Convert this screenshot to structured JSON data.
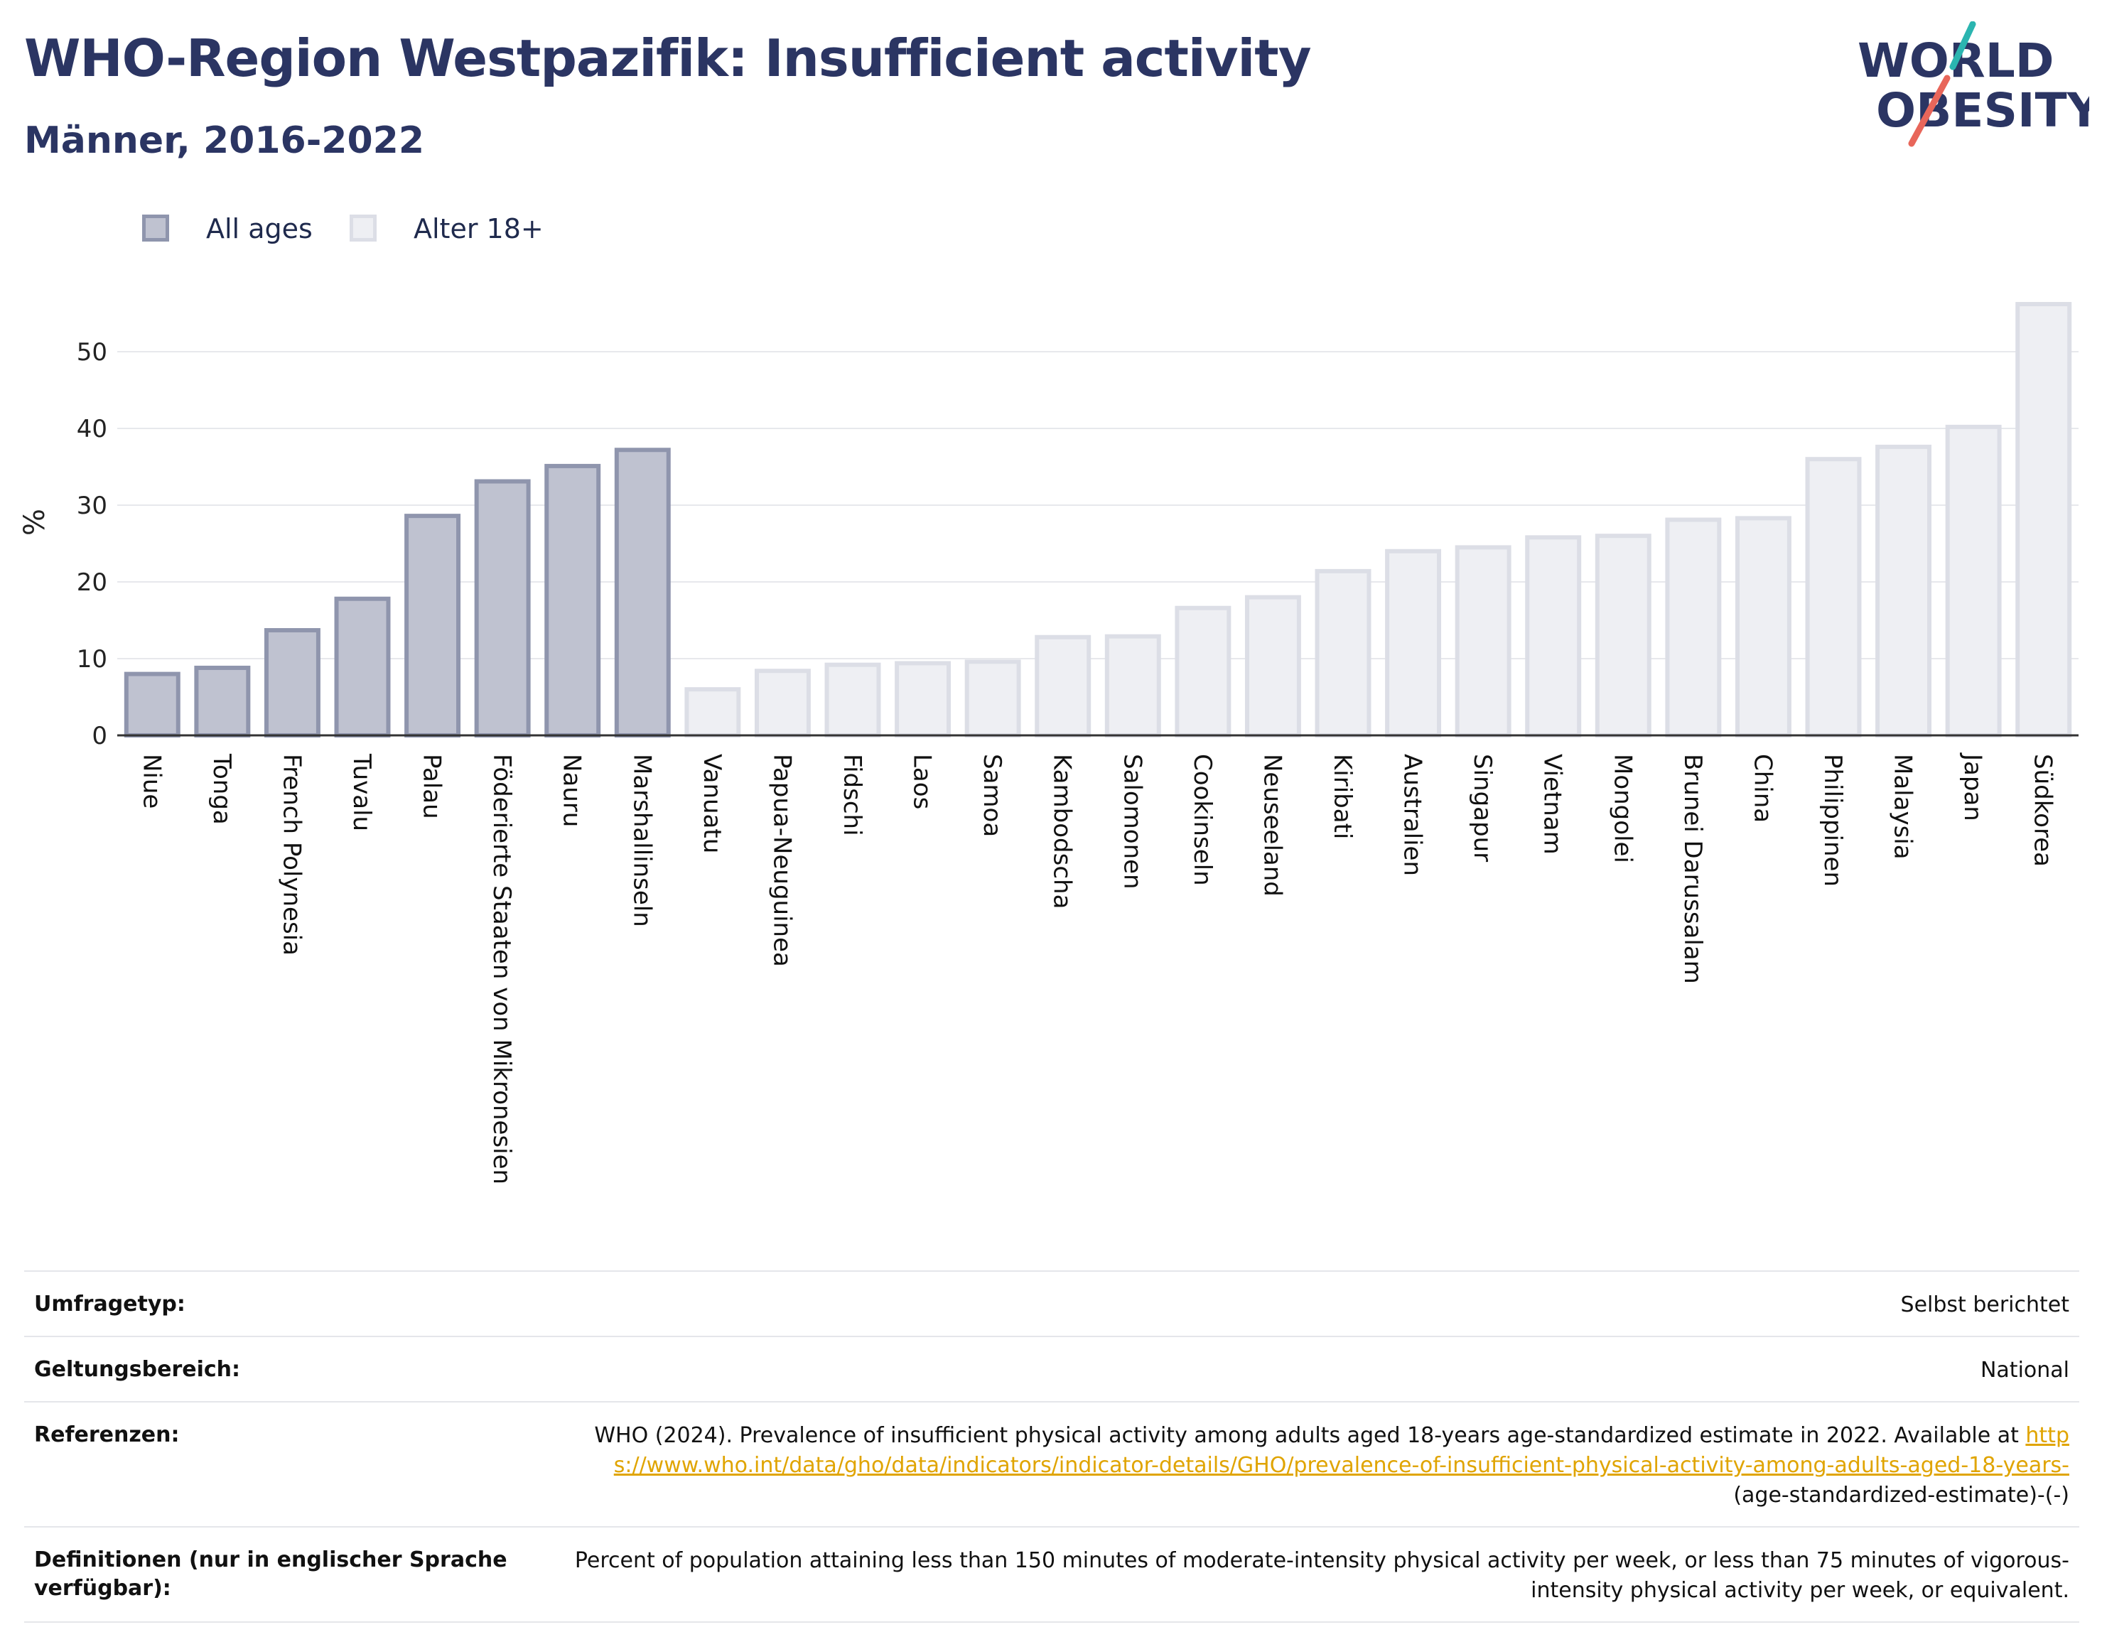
{
  "header": {
    "title": "WHO-Region Westpazifik: Insufficient activity",
    "subtitle": "Männer, 2016-2022"
  },
  "logo": {
    "line1": "WORLD",
    "line2": "OBESITY",
    "accent_colors": [
      "#2bb5b0",
      "#e8665a"
    ]
  },
  "legend": {
    "position": "top-left",
    "items": [
      {
        "label": "All ages",
        "fill": "#bfc2d0",
        "stroke": "#8f95ad"
      },
      {
        "label": "Alter 18+",
        "fill": "#eeeff3",
        "stroke": "#dcdee6"
      }
    ]
  },
  "chart_data": {
    "type": "bar",
    "ylabel": "%",
    "ylim": [
      0,
      57
    ],
    "yticks": [
      0,
      10,
      20,
      30,
      40,
      50
    ],
    "grid": true,
    "categories": [
      "Niue",
      "Tonga",
      "French Polynesia",
      "Tuvalu",
      "Palau",
      "Föderierte Staaten von Mikronesien",
      "Nauru",
      "Marshallinseln",
      "Vanuatu",
      "Papua-Neuguinea",
      "Fidschi",
      "Laos",
      "Samoa",
      "Kambodscha",
      "Salomonen",
      "Cookinseln",
      "Neuseeland",
      "Kiribati",
      "Australien",
      "Singapur",
      "Vietnam",
      "Mongolei",
      "Brunei Darussalam",
      "China",
      "Philippinen",
      "Malaysia",
      "Japan",
      "Südkorea"
    ],
    "values": [
      8.0,
      8.8,
      13.7,
      17.8,
      28.6,
      33.1,
      35.1,
      37.2,
      6.0,
      8.4,
      9.2,
      9.4,
      9.6,
      12.8,
      12.9,
      16.6,
      18.0,
      21.4,
      24.0,
      24.5,
      25.8,
      26.0,
      28.1,
      28.3,
      36.0,
      37.6,
      40.2,
      56.2
    ],
    "series_index": [
      0,
      0,
      0,
      0,
      0,
      0,
      0,
      0,
      1,
      1,
      1,
      1,
      1,
      1,
      1,
      1,
      1,
      1,
      1,
      1,
      1,
      1,
      1,
      1,
      1,
      1,
      1,
      1
    ]
  },
  "meta": [
    {
      "label": "Umfragetyp:",
      "value": "Selbst berichtet"
    },
    {
      "label": "Geltungsbereich:",
      "value": "National"
    },
    {
      "label": "Referenzen:",
      "value_prefix": "WHO (2024). Prevalence of insufficient physical activity among adults aged 18-years age-standardized estimate in 2022. Available at ",
      "link": "https://www.who.int/data/gho/data/indicators/indicator-details/GHO/prevalence-of-insufficient-physical-activity-among-adults-aged-18-years-",
      "value_suffix": "(age-standardized-estimate)-(-)"
    },
    {
      "label": "Definitionen (nur in englischer Sprache verfügbar):",
      "value": "Percent of population attaining less than 150 minutes of moderate-intensity physical activity per week, or less than 75 minutes of vigorous-intensity physical activity per week, or equivalent."
    }
  ]
}
